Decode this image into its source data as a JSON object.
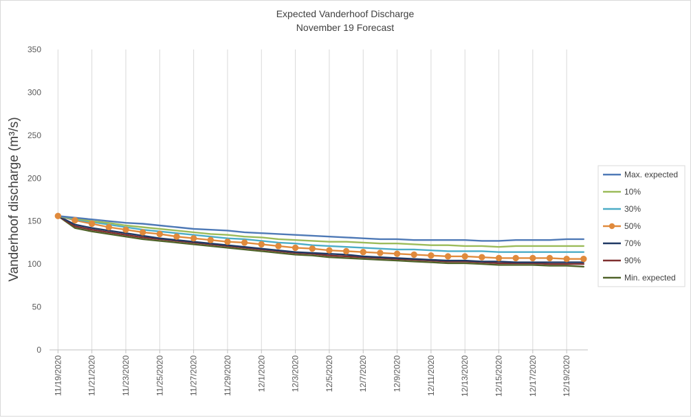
{
  "chart_data": {
    "type": "line",
    "title": "Expected Vanderhoof Discharge",
    "subtitle": "November 19 Forecast",
    "xlabel": "",
    "ylabel": "Vanderhoof discharge (m³/s)",
    "ylim": [
      0,
      350
    ],
    "yticks": [
      0,
      50,
      100,
      150,
      200,
      250,
      300,
      350
    ],
    "grid": "vertical",
    "legend_position": "right",
    "x": [
      "11/19/2020",
      "11/20/2020",
      "11/21/2020",
      "11/22/2020",
      "11/23/2020",
      "11/24/2020",
      "11/25/2020",
      "11/26/2020",
      "11/27/2020",
      "11/28/2020",
      "11/29/2020",
      "11/30/2020",
      "12/1/2020",
      "12/2/2020",
      "12/3/2020",
      "12/4/2020",
      "12/5/2020",
      "12/6/2020",
      "12/7/2020",
      "12/8/2020",
      "12/9/2020",
      "12/10/2020",
      "12/11/2020",
      "12/12/2020",
      "12/13/2020",
      "12/14/2020",
      "12/15/2020",
      "12/16/2020",
      "12/17/2020",
      "12/18/2020",
      "12/19/2020",
      "12/20/2020"
    ],
    "x_tick_labels": [
      "11/19/2020",
      "11/21/2020",
      "11/23/2020",
      "11/25/2020",
      "11/27/2020",
      "11/29/2020",
      "12/1/2020",
      "12/3/2020",
      "12/5/2020",
      "12/7/2020",
      "12/9/2020",
      "12/11/2020",
      "12/13/2020",
      "12/15/2020",
      "12/17/2020",
      "12/19/2020"
    ],
    "series": [
      {
        "name": "Max. expected",
        "color": "#4e79b6",
        "marker": false,
        "values": [
          156,
          154,
          152,
          150,
          148,
          147,
          145,
          143,
          141,
          140,
          139,
          137,
          136,
          135,
          134,
          133,
          132,
          131,
          130,
          129,
          129,
          128,
          128,
          128,
          128,
          127,
          127,
          128,
          128,
          128,
          129,
          129
        ]
      },
      {
        "name": "10%",
        "color": "#9bbb59",
        "marker": false,
        "values": [
          156,
          153,
          150,
          148,
          145,
          143,
          141,
          139,
          137,
          135,
          134,
          132,
          131,
          129,
          128,
          127,
          126,
          126,
          125,
          124,
          124,
          123,
          122,
          122,
          121,
          121,
          120,
          121,
          121,
          121,
          121,
          121
        ]
      },
      {
        "name": "30%",
        "color": "#4bacc6",
        "marker": false,
        "values": [
          156,
          152,
          149,
          146,
          143,
          140,
          138,
          136,
          134,
          132,
          130,
          129,
          127,
          125,
          124,
          122,
          121,
          120,
          119,
          118,
          117,
          117,
          116,
          115,
          115,
          115,
          114,
          114,
          114,
          114,
          114,
          114
        ]
      },
      {
        "name": "50%",
        "color": "#e08a3c",
        "marker": true,
        "values": [
          156,
          151,
          147,
          143,
          140,
          137,
          135,
          132,
          130,
          128,
          126,
          125,
          123,
          121,
          119,
          118,
          116,
          115,
          114,
          113,
          112,
          111,
          110,
          109,
          109,
          108,
          107,
          107,
          107,
          107,
          106,
          106
        ]
      },
      {
        "name": "70%",
        "color": "#1f3864",
        "marker": false,
        "values": [
          156,
          146,
          142,
          139,
          136,
          133,
          130,
          128,
          126,
          124,
          122,
          120,
          118,
          116,
          114,
          113,
          112,
          111,
          109,
          108,
          107,
          106,
          105,
          104,
          104,
          103,
          103,
          102,
          102,
          102,
          102,
          102
        ]
      },
      {
        "name": "90%",
        "color": "#7f2f2f",
        "marker": false,
        "values": [
          156,
          144,
          140,
          137,
          134,
          131,
          129,
          127,
          125,
          123,
          121,
          119,
          117,
          115,
          113,
          112,
          110,
          109,
          108,
          107,
          106,
          105,
          104,
          103,
          103,
          102,
          101,
          101,
          101,
          100,
          100,
          100
        ]
      },
      {
        "name": "Min. expected",
        "color": "#4f6228",
        "marker": false,
        "values": [
          156,
          142,
          138,
          135,
          132,
          129,
          127,
          125,
          123,
          121,
          119,
          117,
          115,
          113,
          111,
          110,
          108,
          107,
          106,
          105,
          104,
          103,
          102,
          101,
          101,
          100,
          99,
          99,
          99,
          98,
          98,
          97
        ]
      }
    ]
  }
}
